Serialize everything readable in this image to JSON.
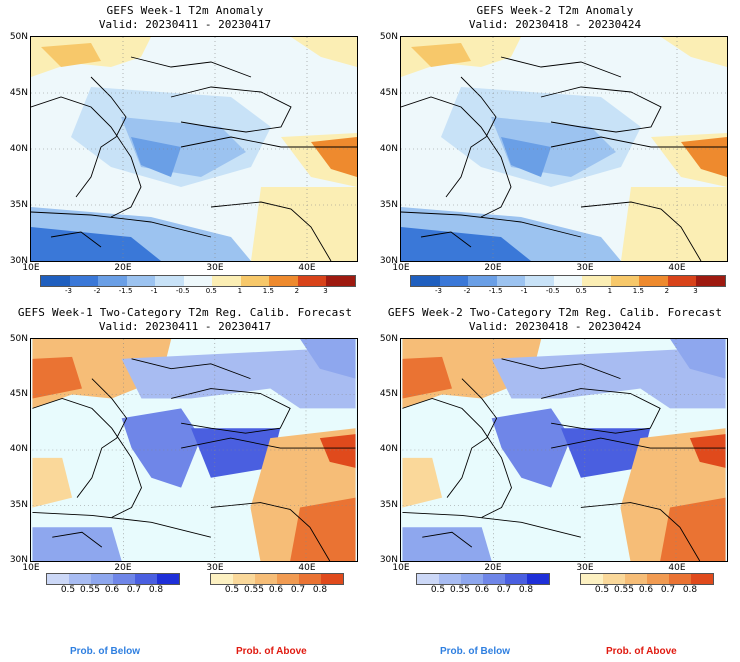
{
  "panels": [
    {
      "title": "GEFS Week-1 T2m Anomaly",
      "valid": "Valid: 20230411 - 20230417",
      "type": "anomaly"
    },
    {
      "title": "GEFS Week-2 T2m Anomaly",
      "valid": "Valid: 20230418 - 20230424",
      "type": "anomaly"
    },
    {
      "title": "GEFS Week-1 Two-Category T2m Reg. Calib. Forecast",
      "valid": "Valid: 20230411 - 20230417",
      "type": "prob"
    },
    {
      "title": "GEFS Week-2 Two-Category T2m Reg. Calib. Forecast",
      "valid": "Valid: 20230418 - 20230424",
      "type": "prob"
    }
  ],
  "lat_labels": [
    "50N",
    "45N",
    "40N",
    "35N",
    "30N"
  ],
  "lon_labels": [
    "10E",
    "20E",
    "30E",
    "40E"
  ],
  "anomaly_colorbar": {
    "ticks": [
      "-3",
      "-2",
      "-1.5",
      "-1",
      "-0.5",
      "0.5",
      "1",
      "1.5",
      "2",
      "3"
    ],
    "colors": [
      "#1f5fbf",
      "#3a78d8",
      "#6a9fe6",
      "#9cc3f0",
      "#c8e2f7",
      "#eef8fb",
      "#fbeeb4",
      "#f7c86a",
      "#ee8a2e",
      "#d8431a",
      "#9e1a10"
    ]
  },
  "below_colorbar": {
    "ticks": [
      "0.5",
      "0.55",
      "0.6",
      "0.7",
      "0.8"
    ],
    "colors": [
      "#ccd8f7",
      "#a8bcf2",
      "#8ea7ee",
      "#6f86e8",
      "#4a5fe0",
      "#1e2fd8"
    ]
  },
  "above_colorbar": {
    "ticks": [
      "0.5",
      "0.55",
      "0.6",
      "0.7",
      "0.8"
    ],
    "colors": [
      "#fdf1c2",
      "#fad89a",
      "#f6bd77",
      "#f19b52",
      "#ea7333",
      "#e04a1c"
    ]
  },
  "legend": {
    "below_label": "Prob. of Below",
    "above_label": "Prob. of Above",
    "below_color": "#2f7fe0",
    "above_color": "#e01a10"
  }
}
